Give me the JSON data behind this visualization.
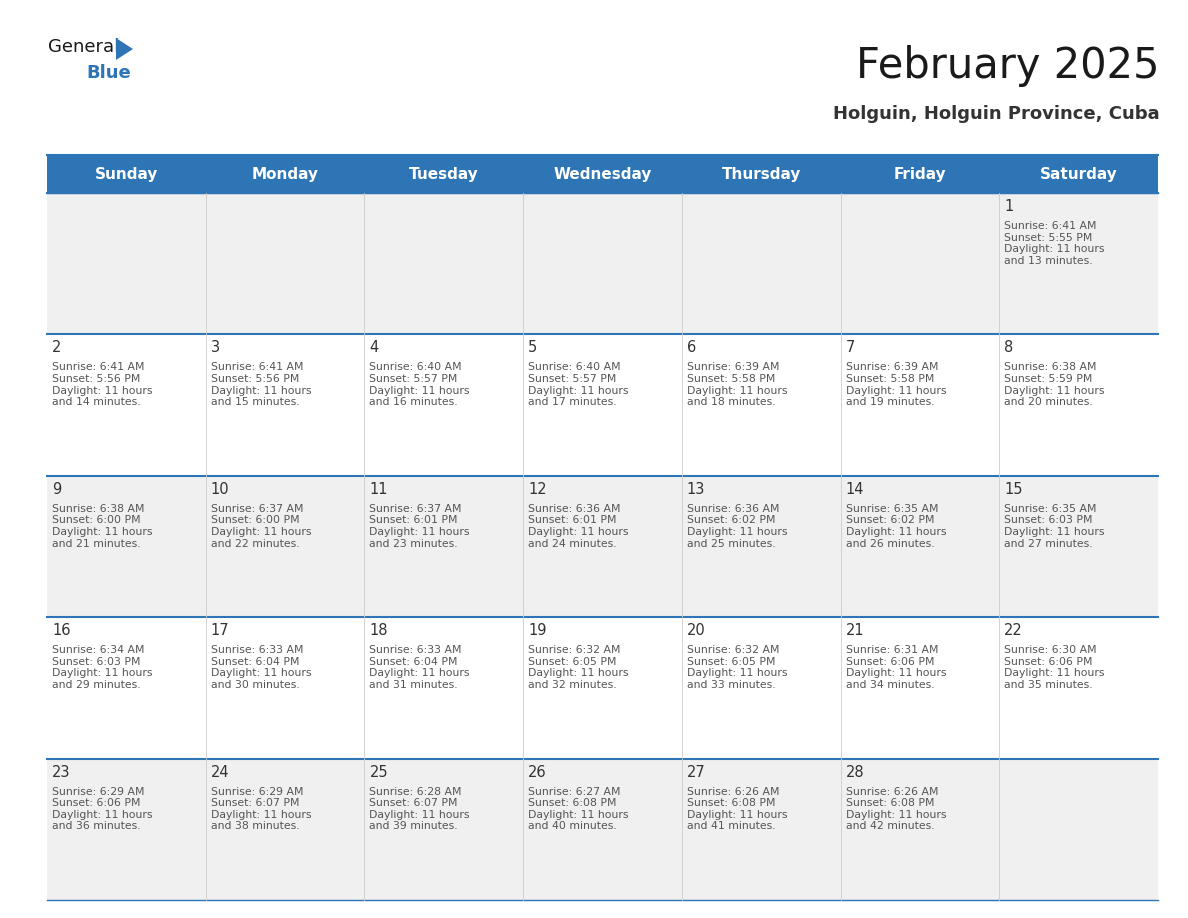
{
  "title": "February 2025",
  "subtitle": "Holguin, Holguin Province, Cuba",
  "header_color": "#2E75B6",
  "header_text_color": "#FFFFFF",
  "days_of_week": [
    "Sunday",
    "Monday",
    "Tuesday",
    "Wednesday",
    "Thursday",
    "Friday",
    "Saturday"
  ],
  "grid_line_color": "#2E75B6",
  "cell_bg_white": "#FFFFFF",
  "cell_bg_gray": "#F0F0F0",
  "day_number_color": "#333333",
  "cell_text_color": "#555555",
  "background_color": "#FFFFFF",
  "weeks": [
    [
      {
        "day": null,
        "info": null
      },
      {
        "day": null,
        "info": null
      },
      {
        "day": null,
        "info": null
      },
      {
        "day": null,
        "info": null
      },
      {
        "day": null,
        "info": null
      },
      {
        "day": null,
        "info": null
      },
      {
        "day": 1,
        "info": "Sunrise: 6:41 AM\nSunset: 5:55 PM\nDaylight: 11 hours\nand 13 minutes."
      }
    ],
    [
      {
        "day": 2,
        "info": "Sunrise: 6:41 AM\nSunset: 5:56 PM\nDaylight: 11 hours\nand 14 minutes."
      },
      {
        "day": 3,
        "info": "Sunrise: 6:41 AM\nSunset: 5:56 PM\nDaylight: 11 hours\nand 15 minutes."
      },
      {
        "day": 4,
        "info": "Sunrise: 6:40 AM\nSunset: 5:57 PM\nDaylight: 11 hours\nand 16 minutes."
      },
      {
        "day": 5,
        "info": "Sunrise: 6:40 AM\nSunset: 5:57 PM\nDaylight: 11 hours\nand 17 minutes."
      },
      {
        "day": 6,
        "info": "Sunrise: 6:39 AM\nSunset: 5:58 PM\nDaylight: 11 hours\nand 18 minutes."
      },
      {
        "day": 7,
        "info": "Sunrise: 6:39 AM\nSunset: 5:58 PM\nDaylight: 11 hours\nand 19 minutes."
      },
      {
        "day": 8,
        "info": "Sunrise: 6:38 AM\nSunset: 5:59 PM\nDaylight: 11 hours\nand 20 minutes."
      }
    ],
    [
      {
        "day": 9,
        "info": "Sunrise: 6:38 AM\nSunset: 6:00 PM\nDaylight: 11 hours\nand 21 minutes."
      },
      {
        "day": 10,
        "info": "Sunrise: 6:37 AM\nSunset: 6:00 PM\nDaylight: 11 hours\nand 22 minutes."
      },
      {
        "day": 11,
        "info": "Sunrise: 6:37 AM\nSunset: 6:01 PM\nDaylight: 11 hours\nand 23 minutes."
      },
      {
        "day": 12,
        "info": "Sunrise: 6:36 AM\nSunset: 6:01 PM\nDaylight: 11 hours\nand 24 minutes."
      },
      {
        "day": 13,
        "info": "Sunrise: 6:36 AM\nSunset: 6:02 PM\nDaylight: 11 hours\nand 25 minutes."
      },
      {
        "day": 14,
        "info": "Sunrise: 6:35 AM\nSunset: 6:02 PM\nDaylight: 11 hours\nand 26 minutes."
      },
      {
        "day": 15,
        "info": "Sunrise: 6:35 AM\nSunset: 6:03 PM\nDaylight: 11 hours\nand 27 minutes."
      }
    ],
    [
      {
        "day": 16,
        "info": "Sunrise: 6:34 AM\nSunset: 6:03 PM\nDaylight: 11 hours\nand 29 minutes."
      },
      {
        "day": 17,
        "info": "Sunrise: 6:33 AM\nSunset: 6:04 PM\nDaylight: 11 hours\nand 30 minutes."
      },
      {
        "day": 18,
        "info": "Sunrise: 6:33 AM\nSunset: 6:04 PM\nDaylight: 11 hours\nand 31 minutes."
      },
      {
        "day": 19,
        "info": "Sunrise: 6:32 AM\nSunset: 6:05 PM\nDaylight: 11 hours\nand 32 minutes."
      },
      {
        "day": 20,
        "info": "Sunrise: 6:32 AM\nSunset: 6:05 PM\nDaylight: 11 hours\nand 33 minutes."
      },
      {
        "day": 21,
        "info": "Sunrise: 6:31 AM\nSunset: 6:06 PM\nDaylight: 11 hours\nand 34 minutes."
      },
      {
        "day": 22,
        "info": "Sunrise: 6:30 AM\nSunset: 6:06 PM\nDaylight: 11 hours\nand 35 minutes."
      }
    ],
    [
      {
        "day": 23,
        "info": "Sunrise: 6:29 AM\nSunset: 6:06 PM\nDaylight: 11 hours\nand 36 minutes."
      },
      {
        "day": 24,
        "info": "Sunrise: 6:29 AM\nSunset: 6:07 PM\nDaylight: 11 hours\nand 38 minutes."
      },
      {
        "day": 25,
        "info": "Sunrise: 6:28 AM\nSunset: 6:07 PM\nDaylight: 11 hours\nand 39 minutes."
      },
      {
        "day": 26,
        "info": "Sunrise: 6:27 AM\nSunset: 6:08 PM\nDaylight: 11 hours\nand 40 minutes."
      },
      {
        "day": 27,
        "info": "Sunrise: 6:26 AM\nSunset: 6:08 PM\nDaylight: 11 hours\nand 41 minutes."
      },
      {
        "day": 28,
        "info": "Sunrise: 6:26 AM\nSunset: 6:08 PM\nDaylight: 11 hours\nand 42 minutes."
      },
      {
        "day": null,
        "info": null
      }
    ]
  ],
  "logo_general_color": "#1a1a1a",
  "logo_blue_color": "#2E75B6",
  "logo_triangle_color": "#2E75B6",
  "title_color": "#1a1a1a",
  "subtitle_color": "#333333"
}
